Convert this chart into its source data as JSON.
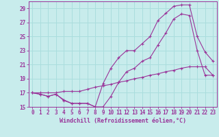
{
  "xlabel": "Windchill (Refroidissement éolien,°C)",
  "bg_color": "#c8ecec",
  "grid_color": "#aadddd",
  "line_color": "#993399",
  "spine_color": "#993399",
  "xlim": [
    -0.5,
    23.5
  ],
  "ylim": [
    15,
    30
  ],
  "xticks": [
    0,
    1,
    2,
    3,
    4,
    5,
    6,
    7,
    8,
    9,
    10,
    11,
    12,
    13,
    14,
    15,
    16,
    17,
    18,
    19,
    20,
    21,
    22,
    23
  ],
  "yticks": [
    15,
    17,
    19,
    21,
    23,
    25,
    27,
    29
  ],
  "line1_x": [
    0,
    1,
    2,
    3,
    4,
    5,
    6,
    7,
    8,
    9,
    10,
    11,
    12,
    13,
    14,
    15,
    16,
    17,
    18,
    19,
    20,
    21,
    22,
    23
  ],
  "line1_y": [
    17,
    16.8,
    16.5,
    16.8,
    15.9,
    15.5,
    15.5,
    15.5,
    15.0,
    18.3,
    20.5,
    22.0,
    23.0,
    23.0,
    24.0,
    25.0,
    27.3,
    28.3,
    29.3,
    29.5,
    29.5,
    25.0,
    22.8,
    21.5
  ],
  "line2_x": [
    0,
    1,
    2,
    3,
    4,
    5,
    6,
    7,
    8,
    9,
    10,
    11,
    12,
    13,
    14,
    15,
    16,
    17,
    18,
    19,
    20,
    21,
    22,
    23
  ],
  "line2_y": [
    17,
    16.8,
    16.5,
    16.8,
    16.0,
    15.5,
    15.5,
    15.5,
    15.0,
    15.0,
    16.5,
    18.5,
    20.0,
    20.5,
    21.5,
    22.0,
    23.8,
    25.5,
    27.5,
    28.2,
    28.0,
    23.0,
    19.5,
    19.5
  ],
  "line3_x": [
    0,
    1,
    2,
    3,
    4,
    5,
    6,
    7,
    8,
    9,
    10,
    11,
    12,
    13,
    14,
    15,
    16,
    17,
    18,
    19,
    20,
    21,
    22,
    23
  ],
  "line3_y": [
    17,
    17,
    17,
    17,
    17.2,
    17.2,
    17.2,
    17.5,
    17.8,
    18.0,
    18.2,
    18.5,
    18.7,
    19.0,
    19.2,
    19.5,
    19.7,
    20.0,
    20.2,
    20.5,
    20.7,
    20.7,
    20.7,
    19.5
  ],
  "tick_fontsize": 5.5,
  "xlabel_fontsize": 6.0
}
